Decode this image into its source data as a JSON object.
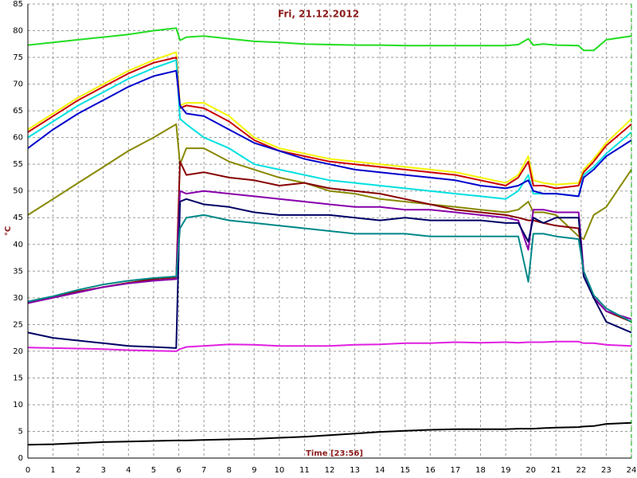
{
  "chart_data": {
    "type": "line",
    "title": "Fri, 21.12.2012",
    "x_label": "Time [23:56]",
    "y_label": "°C",
    "grid": true,
    "xlim": [
      0,
      24
    ],
    "xticks": [
      0,
      1,
      2,
      3,
      4,
      5,
      6,
      7,
      8,
      9,
      10,
      11,
      12,
      13,
      14,
      15,
      16,
      17,
      18,
      19,
      20,
      21,
      22,
      23,
      24
    ],
    "ylim": [
      0,
      85
    ],
    "yticks": [
      0,
      5,
      10,
      15,
      20,
      25,
      30,
      35,
      40,
      45,
      50,
      55,
      60,
      65,
      70,
      75,
      80,
      85
    ],
    "x": [
      0,
      1,
      2,
      3,
      4,
      5,
      5.9,
      6.05,
      6.3,
      7,
      8,
      9,
      10,
      11,
      12,
      13,
      14,
      15,
      16,
      17,
      18,
      19,
      19.5,
      19.9,
      20.1,
      20.5,
      21,
      21.9,
      22.1,
      22.5,
      23,
      24
    ],
    "series": [
      {
        "color": "#22dd22",
        "values": [
          77.3,
          77.8,
          78.3,
          78.8,
          79.3,
          80,
          80.5,
          78.2,
          78.8,
          79,
          78.5,
          78,
          77.8,
          77.5,
          77.4,
          77.3,
          77.3,
          77.2,
          77.2,
          77.2,
          77.2,
          77.2,
          77.4,
          78.5,
          77.3,
          77.5,
          77.3,
          77.2,
          76.3,
          76.3,
          78.3,
          79
        ]
      },
      {
        "color": "#f5f500",
        "values": [
          61.5,
          64.5,
          67.5,
          70,
          72.5,
          74.5,
          76,
          66,
          66.5,
          66.5,
          64,
          60,
          58,
          57,
          56,
          55.5,
          55,
          54.5,
          54,
          53.5,
          52.5,
          51.5,
          53,
          56.5,
          52,
          51.5,
          51.2,
          51.5,
          54,
          56,
          59,
          63.5
        ]
      },
      {
        "color": "#cc0000",
        "values": [
          61,
          64,
          67,
          69.5,
          72,
          74,
          75,
          65.5,
          66,
          65.5,
          63,
          59.5,
          57.5,
          56.5,
          55.5,
          55,
          54.5,
          54,
          53.5,
          53,
          52,
          51,
          52.5,
          55.5,
          51,
          51,
          50.5,
          51,
          53.5,
          55.5,
          58.5,
          62.5
        ]
      },
      {
        "color": "#00e0e0",
        "values": [
          60,
          63,
          66,
          68.5,
          71,
          73,
          74.5,
          63.5,
          62.5,
          60,
          58,
          55,
          54,
          53,
          52,
          51.5,
          51,
          50.5,
          50,
          49.5,
          49,
          48.5,
          50,
          53,
          49.5,
          49.5,
          49.5,
          49,
          53,
          54.5,
          57,
          61
        ]
      },
      {
        "color": "#0000cc",
        "values": [
          58,
          61.5,
          64.5,
          67,
          69.5,
          71.5,
          72.5,
          66,
          64.5,
          64,
          61.5,
          59,
          57.5,
          56,
          55,
          54,
          53.5,
          53,
          52.5,
          52,
          51,
          50.5,
          51,
          52,
          50,
          49.5,
          49.5,
          49,
          52.5,
          54,
          56.5,
          59.5
        ]
      },
      {
        "color": "#888800",
        "values": [
          45.5,
          48.5,
          51.5,
          54.5,
          57.5,
          60,
          62.5,
          55,
          58,
          58,
          55.5,
          54,
          52.5,
          51.5,
          50,
          49.5,
          48.5,
          48,
          47.5,
          47,
          46.5,
          46,
          46.5,
          48,
          46,
          46,
          45.5,
          41.5,
          41,
          45.5,
          47,
          54
        ]
      },
      {
        "color": "#880000",
        "values": [
          29,
          30.2,
          31.2,
          32,
          32.8,
          33.5,
          33.8,
          55.5,
          53,
          53.5,
          52.5,
          52,
          51,
          51.5,
          50.5,
          50,
          49.5,
          48.5,
          47.5,
          46.5,
          46,
          45.5,
          45,
          44.5,
          44.5,
          44,
          43.5,
          43,
          35,
          30,
          27.5,
          25.5
        ]
      },
      {
        "color": "#8800aa",
        "values": [
          29,
          30,
          31,
          32,
          32.7,
          33.2,
          33.5,
          50,
          49.5,
          50,
          49.5,
          49,
          48.5,
          48,
          47.5,
          47,
          47,
          46.5,
          46.5,
          46,
          45.5,
          45,
          44.5,
          39,
          46.5,
          46.5,
          46,
          46,
          35,
          30,
          27.5,
          26
        ]
      },
      {
        "color": "#000066",
        "values": [
          23.5,
          22.5,
          22,
          21.5,
          21,
          20.8,
          20.6,
          48,
          48.5,
          47.5,
          47,
          46,
          45.5,
          45.5,
          45.5,
          45,
          44.5,
          45,
          44.5,
          44.5,
          44.5,
          44,
          44,
          40.5,
          45,
          44,
          45,
          45,
          34,
          30,
          25.5,
          23.5
        ]
      },
      {
        "color": "#008888",
        "values": [
          29.3,
          30.3,
          31.5,
          32.5,
          33.2,
          33.7,
          34,
          43,
          45,
          45.5,
          44.5,
          44,
          43.5,
          43,
          42.5,
          42,
          42,
          42,
          41.5,
          41.5,
          41.5,
          41.5,
          41.5,
          33,
          42,
          42,
          41.5,
          41,
          35,
          30.5,
          28,
          25.5
        ]
      },
      {
        "color": "#e020e0",
        "values": [
          20.7,
          20.6,
          20.5,
          20.4,
          20.2,
          20.1,
          20,
          20.4,
          20.8,
          21,
          21.3,
          21.2,
          21,
          21,
          21,
          21.2,
          21.3,
          21.5,
          21.5,
          21.7,
          21.6,
          21.7,
          21.6,
          21.7,
          21.7,
          21.7,
          21.8,
          21.8,
          21.5,
          21.5,
          21.2,
          21
        ]
      },
      {
        "color": "#000000",
        "values": [
          2.5,
          2.6,
          2.8,
          3,
          3.1,
          3.2,
          3.3,
          3.3,
          3.3,
          3.4,
          3.5,
          3.6,
          3.8,
          4,
          4.3,
          4.6,
          4.9,
          5.1,
          5.3,
          5.4,
          5.4,
          5.4,
          5.5,
          5.5,
          5.5,
          5.6,
          5.7,
          5.8,
          5.9,
          6,
          6.4,
          6.6
        ]
      }
    ]
  }
}
